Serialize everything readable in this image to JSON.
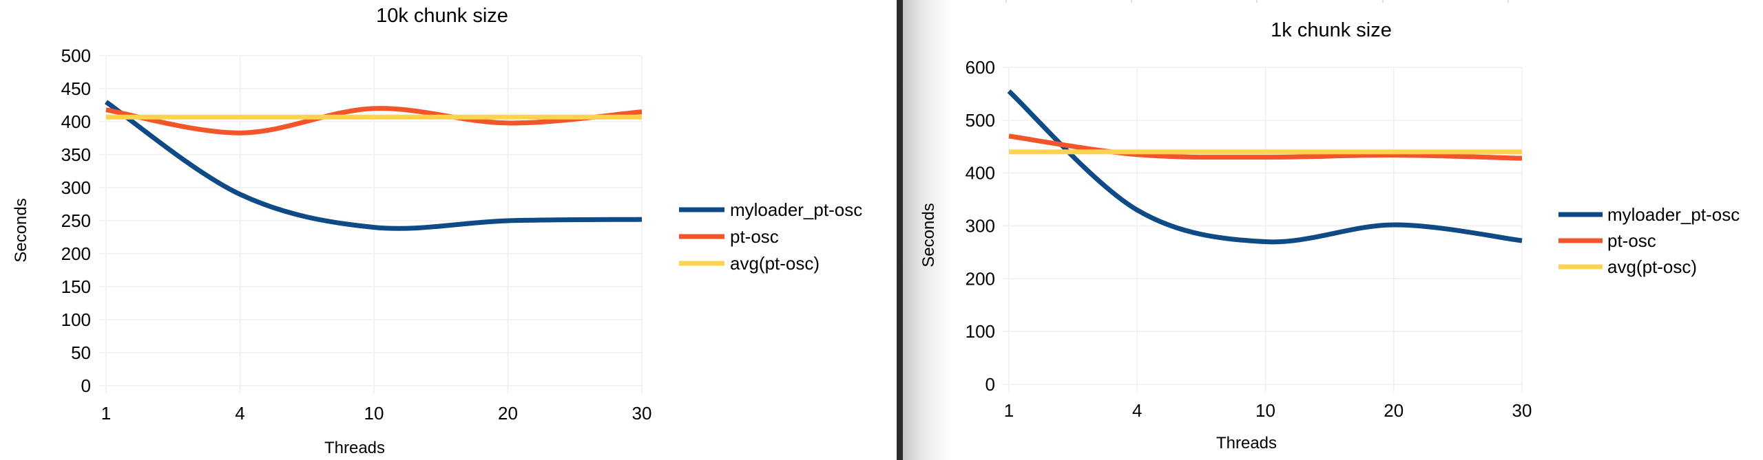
{
  "chart_data": [
    {
      "type": "line",
      "title": "10k chunk size",
      "xlabel": "Threads",
      "ylabel": "Seconds",
      "categories": [
        "1",
        "4",
        "10",
        "20",
        "30"
      ],
      "ylim": [
        0,
        500
      ],
      "yticks": [
        0,
        50,
        100,
        150,
        200,
        250,
        300,
        350,
        400,
        450,
        500
      ],
      "grid": true,
      "smooth": true,
      "legend_position": "right",
      "series": [
        {
          "name": "myloader_pt-osc",
          "color": "#0d4a86",
          "values": [
            430,
            290,
            240,
            250,
            252
          ]
        },
        {
          "name": "pt-osc",
          "color": "#f2552a",
          "values": [
            418,
            383,
            420,
            398,
            415
          ]
        },
        {
          "name": "avg(pt-osc)",
          "color": "#fdd34f",
          "values": [
            407,
            407,
            407,
            407,
            407
          ]
        }
      ]
    },
    {
      "type": "line",
      "title": "1k chunk size",
      "xlabel": "Threads",
      "ylabel": "Seconds",
      "categories": [
        "1",
        "4",
        "10",
        "20",
        "30"
      ],
      "ylim": [
        0,
        600
      ],
      "yticks": [
        0,
        100,
        200,
        300,
        400,
        500,
        600
      ],
      "grid": true,
      "smooth": true,
      "legend_position": "right",
      "series": [
        {
          "name": "myloader_pt-osc",
          "color": "#0d4a86",
          "values": [
            555,
            330,
            270,
            302,
            272
          ]
        },
        {
          "name": "pt-osc",
          "color": "#f2552a",
          "values": [
            470,
            435,
            430,
            434,
            428
          ]
        },
        {
          "name": "avg(pt-osc)",
          "color": "#fdd34f",
          "values": [
            440,
            440,
            440,
            440,
            440
          ]
        }
      ]
    }
  ]
}
